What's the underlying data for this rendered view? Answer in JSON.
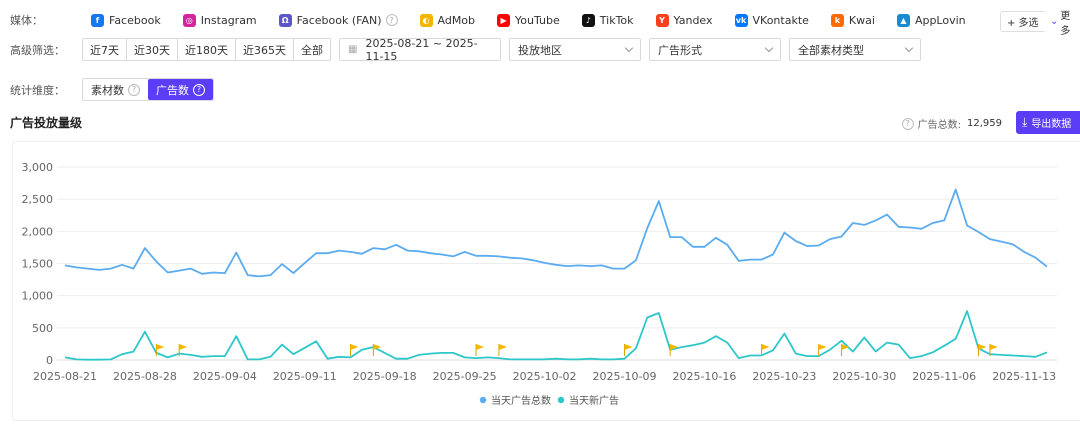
{
  "filters": {
    "media_label": "媒体：",
    "platforms": [
      {
        "name": "Facebook",
        "icon": "facebook-icon",
        "color": "#1877f2",
        "glyph": "f"
      },
      {
        "name": "Instagram",
        "icon": "instagram-icon",
        "color": "#d6249f",
        "glyph": "◎"
      },
      {
        "name": "Facebook (FAN)",
        "icon": "facebook-fan-icon",
        "color": "#5b57c6",
        "glyph": "Ω",
        "help": "?"
      },
      {
        "name": "AdMob",
        "icon": "admob-icon",
        "color": "#f4b400",
        "glyph": "◐"
      },
      {
        "name": "YouTube",
        "icon": "youtube-icon",
        "color": "#ff0000",
        "glyph": "▶"
      },
      {
        "name": "TikTok",
        "icon": "tiktok-icon",
        "color": "#111111",
        "glyph": "♪"
      },
      {
        "name": "Yandex",
        "icon": "yandex-icon",
        "color": "#fc3f1d",
        "glyph": "Y"
      },
      {
        "name": "VKontakte",
        "icon": "vkontakte-icon",
        "color": "#0077ff",
        "glyph": "vk"
      },
      {
        "name": "Kwai",
        "icon": "kwai-icon",
        "color": "#ff6a00",
        "glyph": "k"
      },
      {
        "name": "AppLovin",
        "icon": "applovin-icon",
        "color": "#1b8bd0",
        "glyph": "▲"
      }
    ],
    "multi_select": "+ 多选",
    "more": "更多",
    "advanced_label": "高级筛选：",
    "ranges": [
      "近7天",
      "近30天",
      "近180天",
      "近365天",
      "全部"
    ],
    "date_range": "2025-08-21 ~ 2025-11-15",
    "region": "投放地区",
    "ad_format": "广告形式",
    "material_type": "全部素材类型",
    "dimension_label": "统计维度：",
    "dimension_options": [
      {
        "label": "素材数",
        "help": "?",
        "active": false
      },
      {
        "label": "广告数",
        "help": "?",
        "active": true
      }
    ]
  },
  "header": {
    "title": "广告投放量级",
    "total_label": "广告总数:",
    "total_value": "12,959",
    "export": "导出数据"
  },
  "chart_data": {
    "type": "line",
    "ylim": [
      0,
      3000
    ],
    "yticks": [
      0,
      500,
      1000,
      1500,
      2000,
      2500,
      3000
    ],
    "ytick_labels": [
      "0",
      "500",
      "1,000",
      "1,500",
      "2,000",
      "2,500",
      "3,000"
    ],
    "x_start": "2025-08-21",
    "x_end": "2025-11-15",
    "xtick_labels": [
      "2025-08-21",
      "2025-08-28",
      "2025-09-04",
      "2025-09-11",
      "2025-09-18",
      "2025-09-25",
      "2025-10-02",
      "2025-10-09",
      "2025-10-16",
      "2025-10-23",
      "2025-10-30",
      "2025-11-06",
      "2025-11-13"
    ],
    "grid": true,
    "legend_position": "bottom-center",
    "series": [
      {
        "name": "当天广告总数",
        "color": "#5aabf0",
        "values": [
          1470,
          1440,
          1420,
          1400,
          1420,
          1480,
          1420,
          1740,
          1530,
          1360,
          1390,
          1420,
          1340,
          1360,
          1350,
          1670,
          1320,
          1300,
          1320,
          1490,
          1350,
          1510,
          1660,
          1660,
          1700,
          1680,
          1650,
          1740,
          1720,
          1790,
          1700,
          1690,
          1660,
          1640,
          1610,
          1680,
          1620,
          1620,
          1610,
          1590,
          1580,
          1550,
          1510,
          1480,
          1460,
          1470,
          1460,
          1470,
          1420,
          1420,
          1550,
          2050,
          2470,
          1910,
          1910,
          1760,
          1760,
          1900,
          1790,
          1540,
          1560,
          1560,
          1640,
          1980,
          1850,
          1770,
          1780,
          1880,
          1920,
          2130,
          2100,
          2170,
          2260,
          2070,
          2060,
          2040,
          2130,
          2170,
          2650,
          2090,
          1990,
          1880,
          1840,
          1800,
          1680,
          1590,
          1450
        ]
      },
      {
        "name": "当天新广告",
        "color": "#2ec7c9",
        "values": [
          40,
          10,
          5,
          5,
          10,
          90,
          130,
          440,
          110,
          40,
          100,
          80,
          50,
          60,
          60,
          370,
          10,
          10,
          50,
          240,
          90,
          190,
          290,
          20,
          50,
          40,
          160,
          200,
          110,
          20,
          20,
          80,
          100,
          110,
          110,
          40,
          30,
          40,
          30,
          10,
          10,
          10,
          10,
          20,
          10,
          10,
          20,
          10,
          10,
          20,
          180,
          660,
          730,
          160,
          200,
          230,
          270,
          370,
          270,
          30,
          70,
          70,
          150,
          410,
          100,
          60,
          60,
          160,
          300,
          130,
          350,
          130,
          270,
          240,
          30,
          60,
          120,
          220,
          330,
          760,
          180,
          90,
          80,
          70,
          60,
          50,
          120
        ]
      }
    ],
    "flag_color": "#f5b800"
  }
}
